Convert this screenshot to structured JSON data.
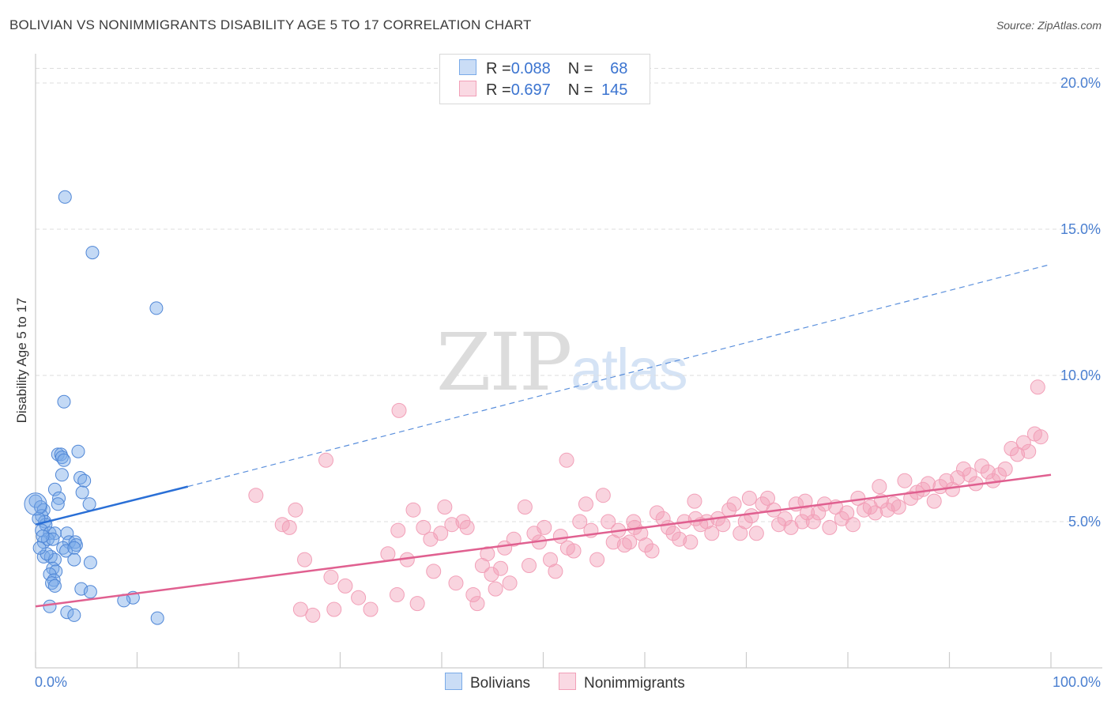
{
  "header": {
    "title": "BOLIVIAN VS NONIMMIGRANTS DISABILITY AGE 5 TO 17 CORRELATION CHART",
    "source": "Source: ZipAtlas.com"
  },
  "watermark": {
    "zip": "ZIP",
    "atlas": "atlas"
  },
  "legend": {
    "rows": [
      {
        "r_label": "R = ",
        "r_value": "0.088",
        "n_label": "N = ",
        "n_value": "68",
        "color": "#7aaae8"
      },
      {
        "r_label": "R = ",
        "r_value": "0.697",
        "n_label": "N = ",
        "n_value": "145",
        "color": "#f2a0b8"
      }
    ]
  },
  "bottom_legend": {
    "bolivians": "Bolivians",
    "nonimmigrants": "Nonimmigrants"
  },
  "chart_data": {
    "type": "scatter",
    "xlabel": "",
    "ylabel": "Disability Age 5 to 17",
    "xlim": [
      0,
      100
    ],
    "ylim": [
      0,
      21
    ],
    "x_tick_labels": [
      "0.0%",
      "100.0%"
    ],
    "y_ticks": [
      5,
      10,
      15,
      20
    ],
    "y_tick_labels": [
      "5.0%",
      "10.0%",
      "15.0%",
      "20.0%"
    ],
    "grid": true,
    "legend_position": "top-center",
    "colors": {
      "bolivians": "#7aaae8",
      "bolivians_line": "#2a6fd6",
      "nonimmigrants": "#f2a0b8",
      "nonimmigrants_line": "#e06090"
    },
    "series": [
      {
        "name": "Bolivians",
        "trend": {
          "x": [
            0,
            15
          ],
          "y": [
            4.9,
            6.2
          ],
          "dashed_to": [
            100,
            13.8
          ]
        },
        "points": [
          [
            2.9,
            16.1
          ],
          [
            5.6,
            14.2
          ],
          [
            11.9,
            12.3
          ],
          [
            2.8,
            9.1
          ],
          [
            2.2,
            7.3
          ],
          [
            2.5,
            7.3
          ],
          [
            2.6,
            7.2
          ],
          [
            2.8,
            7.1
          ],
          [
            4.2,
            7.4
          ],
          [
            2.6,
            6.6
          ],
          [
            4.4,
            6.5
          ],
          [
            4.8,
            6.4
          ],
          [
            1.9,
            6.1
          ],
          [
            4.6,
            6.0
          ],
          [
            0.0,
            5.7
          ],
          [
            0.5,
            5.5
          ],
          [
            0.8,
            5.4
          ],
          [
            2.3,
            5.8
          ],
          [
            2.2,
            5.6
          ],
          [
            5.3,
            5.6
          ],
          [
            0.6,
            5.2
          ],
          [
            0.9,
            5.0
          ],
          [
            1.0,
            4.9
          ],
          [
            0.6,
            4.7
          ],
          [
            1.4,
            4.6
          ],
          [
            1.9,
            4.6
          ],
          [
            3.1,
            4.6
          ],
          [
            0.8,
            4.3
          ],
          [
            1.2,
            4.4
          ],
          [
            1.7,
            4.4
          ],
          [
            3.3,
            4.3
          ],
          [
            3.9,
            4.3
          ],
          [
            4.0,
            4.2
          ],
          [
            2.7,
            4.1
          ],
          [
            3.0,
            4.0
          ],
          [
            3.8,
            4.1
          ],
          [
            0.8,
            3.8
          ],
          [
            1.5,
            3.8
          ],
          [
            1.9,
            3.7
          ],
          [
            3.8,
            3.7
          ],
          [
            5.4,
            3.6
          ],
          [
            1.7,
            3.4
          ],
          [
            2.0,
            3.3
          ],
          [
            1.4,
            3.2
          ],
          [
            1.8,
            3.0
          ],
          [
            1.6,
            2.9
          ],
          [
            1.9,
            2.8
          ],
          [
            4.5,
            2.7
          ],
          [
            5.4,
            2.6
          ],
          [
            9.6,
            2.4
          ],
          [
            8.7,
            2.3
          ],
          [
            1.4,
            2.1
          ],
          [
            3.1,
            1.9
          ],
          [
            3.8,
            1.8
          ],
          [
            12.0,
            1.7
          ],
          [
            0.3,
            5.1
          ],
          [
            0.7,
            4.5
          ],
          [
            1.1,
            3.9
          ],
          [
            0.4,
            4.1
          ]
        ]
      },
      {
        "name": "Nonimmigrants",
        "trend": {
          "x": [
            0,
            100
          ],
          "y": [
            2.1,
            6.6
          ]
        },
        "points": [
          [
            35.8,
            8.8
          ],
          [
            28.6,
            7.1
          ],
          [
            52.3,
            7.1
          ],
          [
            98.7,
            9.6
          ],
          [
            21.7,
            5.9
          ],
          [
            25.6,
            5.4
          ],
          [
            25.0,
            4.8
          ],
          [
            24.3,
            4.9
          ],
          [
            26.5,
            3.7
          ],
          [
            29.1,
            3.1
          ],
          [
            31.8,
            2.4
          ],
          [
            30.5,
            2.8
          ],
          [
            26.1,
            2.0
          ],
          [
            27.3,
            1.8
          ],
          [
            29.4,
            2.0
          ],
          [
            33.0,
            2.0
          ],
          [
            34.7,
            3.9
          ],
          [
            35.6,
            2.5
          ],
          [
            36.6,
            3.7
          ],
          [
            37.6,
            2.2
          ],
          [
            35.7,
            4.7
          ],
          [
            37.2,
            5.4
          ],
          [
            38.2,
            4.8
          ],
          [
            38.9,
            4.4
          ],
          [
            39.2,
            3.3
          ],
          [
            39.9,
            4.6
          ],
          [
            40.3,
            5.5
          ],
          [
            41.0,
            4.9
          ],
          [
            41.4,
            2.9
          ],
          [
            42.1,
            5.0
          ],
          [
            42.5,
            4.8
          ],
          [
            43.1,
            2.5
          ],
          [
            43.5,
            2.2
          ],
          [
            44.0,
            3.5
          ],
          [
            44.5,
            3.9
          ],
          [
            44.9,
            3.2
          ],
          [
            45.3,
            2.7
          ],
          [
            45.8,
            3.4
          ],
          [
            46.2,
            4.1
          ],
          [
            46.7,
            2.9
          ],
          [
            47.1,
            4.4
          ],
          [
            48.2,
            5.5
          ],
          [
            48.6,
            3.5
          ],
          [
            49.1,
            4.6
          ],
          [
            49.6,
            4.3
          ],
          [
            50.1,
            4.8
          ],
          [
            50.7,
            3.7
          ],
          [
            51.2,
            3.3
          ],
          [
            51.7,
            4.5
          ],
          [
            52.4,
            4.1
          ],
          [
            53.0,
            4.0
          ],
          [
            53.6,
            5.0
          ],
          [
            54.2,
            5.6
          ],
          [
            54.7,
            4.7
          ],
          [
            55.3,
            3.7
          ],
          [
            55.9,
            5.9
          ],
          [
            56.4,
            5.0
          ],
          [
            56.9,
            4.3
          ],
          [
            57.4,
            4.7
          ],
          [
            58.0,
            4.2
          ],
          [
            58.5,
            4.3
          ],
          [
            59.0,
            4.8
          ],
          [
            59.6,
            4.6
          ],
          [
            60.1,
            4.2
          ],
          [
            60.7,
            4.0
          ],
          [
            61.2,
            5.3
          ],
          [
            61.8,
            5.1
          ],
          [
            62.3,
            4.8
          ],
          [
            62.8,
            4.6
          ],
          [
            63.4,
            4.4
          ],
          [
            63.9,
            5.0
          ],
          [
            64.5,
            4.3
          ],
          [
            65.0,
            5.1
          ],
          [
            65.5,
            4.9
          ],
          [
            66.1,
            5.0
          ],
          [
            66.6,
            4.6
          ],
          [
            67.2,
            5.1
          ],
          [
            67.7,
            4.9
          ],
          [
            68.3,
            5.4
          ],
          [
            68.8,
            5.6
          ],
          [
            69.4,
            4.6
          ],
          [
            69.9,
            5.0
          ],
          [
            70.5,
            5.2
          ],
          [
            71.0,
            4.6
          ],
          [
            71.6,
            5.6
          ],
          [
            72.1,
            5.8
          ],
          [
            72.7,
            5.4
          ],
          [
            73.2,
            4.9
          ],
          [
            73.8,
            5.1
          ],
          [
            74.4,
            4.8
          ],
          [
            74.9,
            5.6
          ],
          [
            75.5,
            5.0
          ],
          [
            76.0,
            5.3
          ],
          [
            76.6,
            5.0
          ],
          [
            77.1,
            5.3
          ],
          [
            77.7,
            5.6
          ],
          [
            78.2,
            4.8
          ],
          [
            78.8,
            5.5
          ],
          [
            79.4,
            5.1
          ],
          [
            79.9,
            5.3
          ],
          [
            80.5,
            4.9
          ],
          [
            81.0,
            5.8
          ],
          [
            81.6,
            5.4
          ],
          [
            82.2,
            5.5
          ],
          [
            82.7,
            5.3
          ],
          [
            83.3,
            5.7
          ],
          [
            83.9,
            5.4
          ],
          [
            84.5,
            5.6
          ],
          [
            85.0,
            5.5
          ],
          [
            85.6,
            6.4
          ],
          [
            86.2,
            5.8
          ],
          [
            86.8,
            6.0
          ],
          [
            87.4,
            6.1
          ],
          [
            87.9,
            6.3
          ],
          [
            88.5,
            5.7
          ],
          [
            89.1,
            6.2
          ],
          [
            89.7,
            6.4
          ],
          [
            90.3,
            6.1
          ],
          [
            90.8,
            6.5
          ],
          [
            91.4,
            6.8
          ],
          [
            92.0,
            6.6
          ],
          [
            92.6,
            6.3
          ],
          [
            93.2,
            6.9
          ],
          [
            93.8,
            6.7
          ],
          [
            94.3,
            6.4
          ],
          [
            94.9,
            6.6
          ],
          [
            95.5,
            6.8
          ],
          [
            96.1,
            7.5
          ],
          [
            96.7,
            7.3
          ],
          [
            97.3,
            7.7
          ],
          [
            97.8,
            7.4
          ],
          [
            98.4,
            8.0
          ],
          [
            99.0,
            7.9
          ],
          [
            64.9,
            5.7
          ],
          [
            58.9,
            5.0
          ],
          [
            70.3,
            5.8
          ],
          [
            75.8,
            5.7
          ],
          [
            83.1,
            6.2
          ]
        ]
      }
    ]
  }
}
